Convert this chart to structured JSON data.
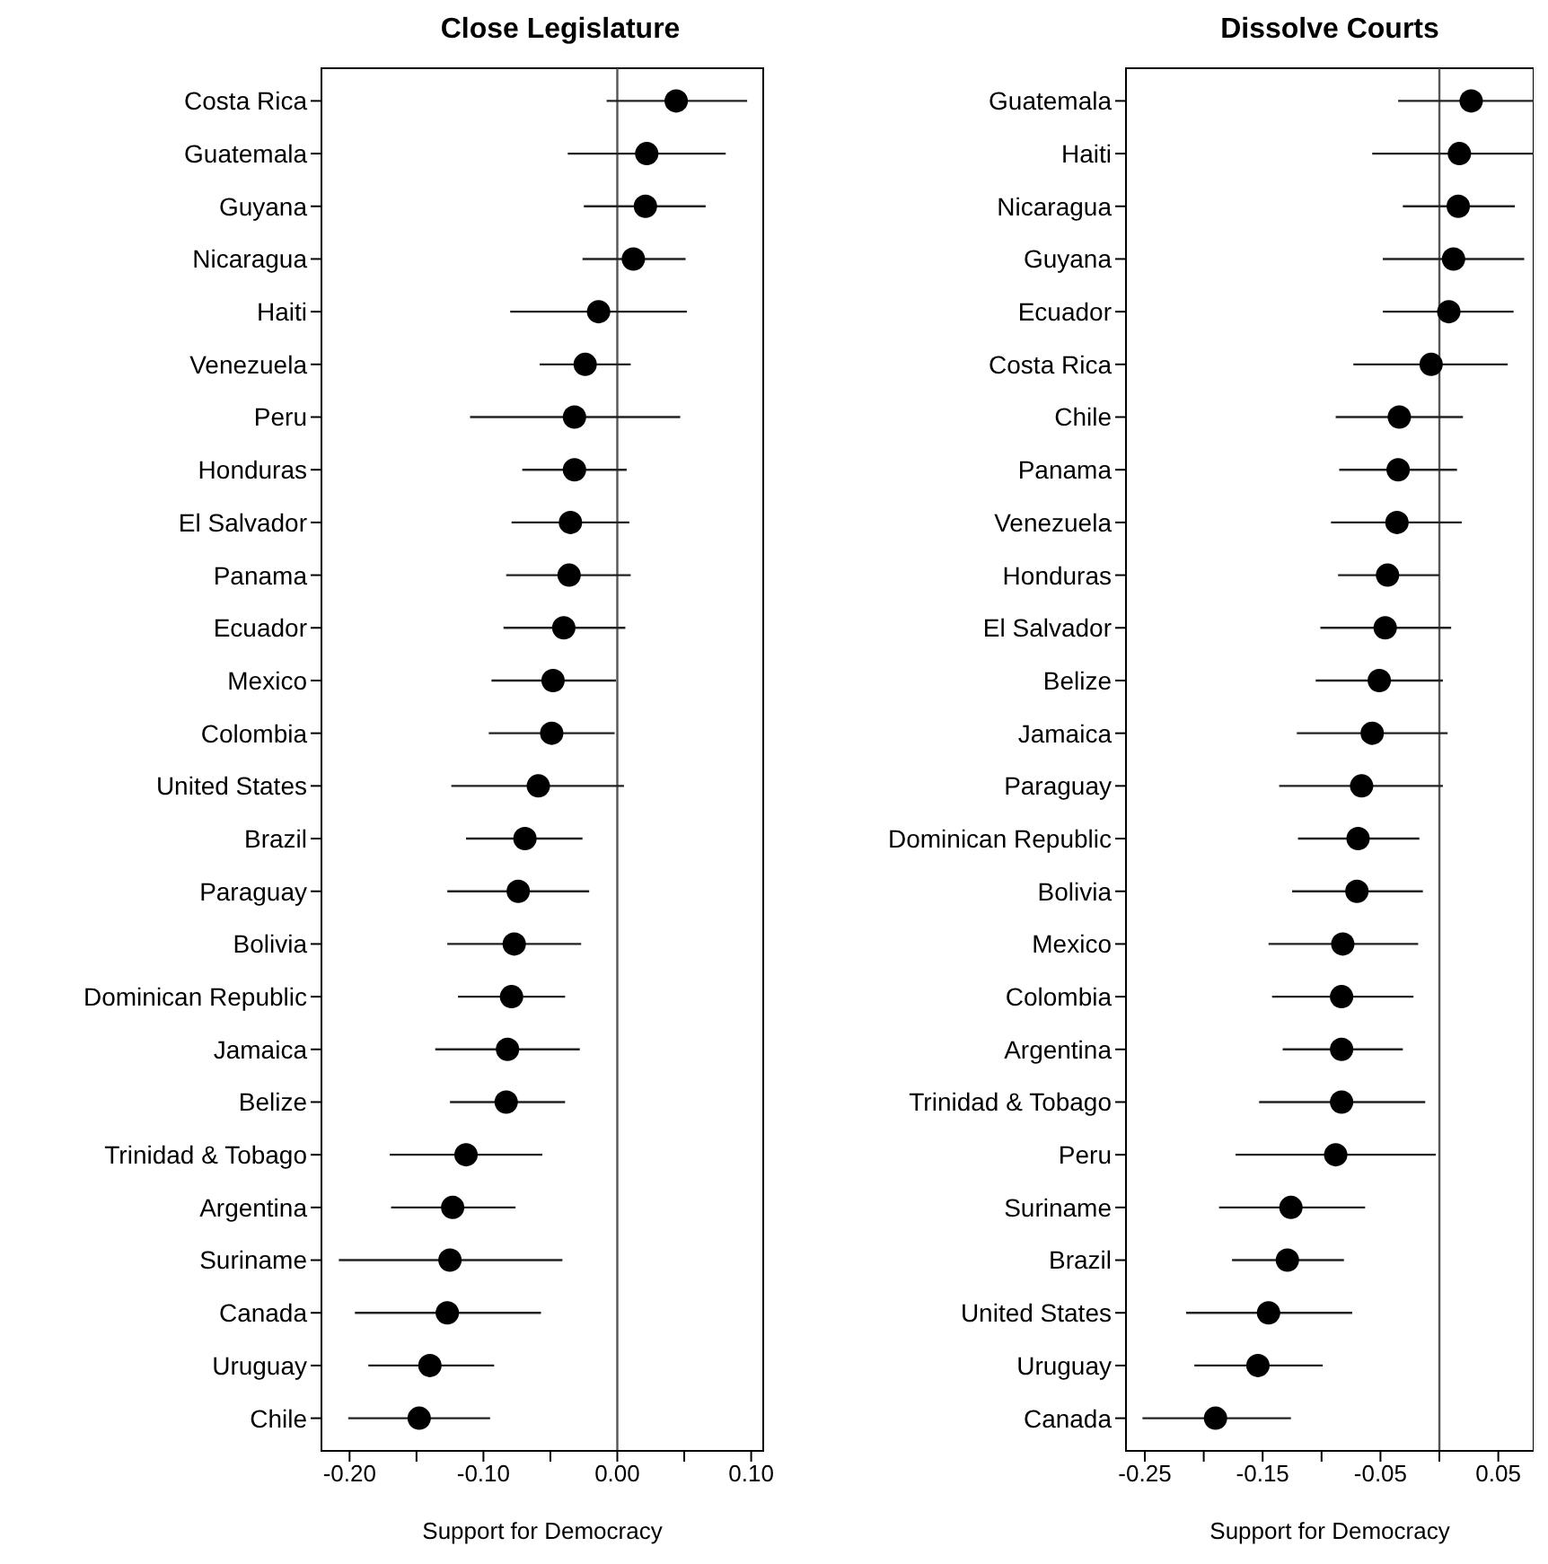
{
  "chart_data": [
    {
      "type": "scatter",
      "orientation": "horizontal",
      "title": "Close Legislature",
      "xlabel": "Support for Democracy",
      "marker": "circle",
      "grid": false,
      "legend": false,
      "categories": [
        "Costa Rica",
        "Guatemala",
        "Guyana",
        "Nicaragua",
        "Haiti",
        "Venezuela",
        "Peru",
        "Honduras",
        "El Salvador",
        "Panama",
        "Ecuador",
        "Mexico",
        "Colombia",
        "United States",
        "Brazil",
        "Paraguay",
        "Bolivia",
        "Dominican Republic",
        "Jamaica",
        "Belize",
        "Trinidad & Tobago",
        "Argentina",
        "Suriname",
        "Canada",
        "Uruguay",
        "Chile"
      ],
      "series": [
        {
          "color": "#000000",
          "values": [
            0.044,
            0.022,
            0.021,
            0.012,
            -0.014,
            -0.024,
            -0.032,
            -0.032,
            -0.035,
            -0.036,
            -0.04,
            -0.048,
            -0.049,
            -0.059,
            -0.069,
            -0.074,
            -0.077,
            -0.079,
            -0.082,
            -0.083,
            -0.113,
            -0.123,
            -0.125,
            -0.127,
            -0.14,
            -0.148
          ],
          "errors": [
            [
              -0.008,
              0.097
            ],
            [
              -0.037,
              0.081
            ],
            [
              -0.025,
              0.066
            ],
            [
              -0.026,
              0.051
            ],
            [
              -0.08,
              0.052
            ],
            [
              -0.058,
              0.01
            ],
            [
              -0.11,
              0.047
            ],
            [
              -0.071,
              0.007
            ],
            [
              -0.079,
              0.009
            ],
            [
              -0.083,
              0.01
            ],
            [
              -0.085,
              0.006
            ],
            [
              -0.094,
              -0.001
            ],
            [
              -0.096,
              -0.002
            ],
            [
              -0.124,
              0.005
            ],
            [
              -0.113,
              -0.026
            ],
            [
              -0.127,
              -0.021
            ],
            [
              -0.127,
              -0.027
            ],
            [
              -0.119,
              -0.039
            ],
            [
              -0.136,
              -0.028
            ],
            [
              -0.125,
              -0.039
            ],
            [
              -0.17,
              -0.056
            ],
            [
              -0.169,
              -0.076
            ],
            [
              -0.208,
              -0.041
            ],
            [
              -0.196,
              -0.057
            ],
            [
              -0.186,
              -0.092
            ],
            [
              -0.201,
              -0.095
            ]
          ]
        }
      ],
      "xlim": [
        -0.221,
        0.109
      ],
      "xticks": [
        {
          "value": -0.2,
          "label": "-0.20"
        },
        {
          "value": -0.15,
          "label": null
        },
        {
          "value": -0.1,
          "label": "-0.10"
        },
        {
          "value": -0.05,
          "label": null
        },
        {
          "value": 0,
          "label": "0.00"
        },
        {
          "value": 0.05,
          "label": null
        },
        {
          "value": 0.1,
          "label": "0.10"
        }
      ],
      "ref_lines": [
        {
          "axis": "x",
          "value": 0,
          "color": "#555555"
        }
      ]
    },
    {
      "type": "scatter",
      "orientation": "horizontal",
      "title": "Dissolve Courts",
      "xlabel": "Support for Democracy",
      "marker": "circle",
      "grid": false,
      "legend": false,
      "categories": [
        "Guatemala",
        "Haiti",
        "Nicaragua",
        "Guyana",
        "Ecuador",
        "Costa Rica",
        "Chile",
        "Panama",
        "Venezuela",
        "Honduras",
        "El Salvador",
        "Belize",
        "Jamaica",
        "Paraguay",
        "Dominican Republic",
        "Bolivia",
        "Mexico",
        "Colombia",
        "Argentina",
        "Trinidad & Tobago",
        "Peru",
        "Suriname",
        "Brazil",
        "United States",
        "Uruguay",
        "Canada"
      ],
      "series": [
        {
          "color": "#000000",
          "values": [
            0.027,
            0.017,
            0.016,
            0.012,
            0.008,
            -0.007,
            -0.034,
            -0.035,
            -0.036,
            -0.044,
            -0.046,
            -0.051,
            -0.057,
            -0.066,
            -0.069,
            -0.07,
            -0.082,
            -0.083,
            -0.083,
            -0.083,
            -0.088,
            -0.126,
            -0.129,
            -0.145,
            -0.154,
            -0.19
          ],
          "errors": [
            [
              -0.035,
              0.08
            ],
            [
              -0.057,
              0.08
            ],
            [
              -0.031,
              0.064
            ],
            [
              -0.048,
              0.072
            ],
            [
              -0.048,
              0.063
            ],
            [
              -0.073,
              0.058
            ],
            [
              -0.088,
              0.02
            ],
            [
              -0.085,
              0.015
            ],
            [
              -0.092,
              0.019
            ],
            [
              -0.086,
              0.0
            ],
            [
              -0.101,
              0.01
            ],
            [
              -0.105,
              0.003
            ],
            [
              -0.121,
              0.007
            ],
            [
              -0.136,
              0.003
            ],
            [
              -0.12,
              -0.017
            ],
            [
              -0.125,
              -0.014
            ],
            [
              -0.145,
              -0.018
            ],
            [
              -0.142,
              -0.022
            ],
            [
              -0.133,
              -0.031
            ],
            [
              -0.153,
              -0.012
            ],
            [
              -0.173,
              -0.003
            ],
            [
              -0.187,
              -0.063
            ],
            [
              -0.176,
              -0.081
            ],
            [
              -0.215,
              -0.074
            ],
            [
              -0.208,
              -0.099
            ],
            [
              -0.252,
              -0.126
            ]
          ]
        }
      ],
      "xlim": [
        -0.266,
        0.08
      ],
      "xticks": [
        -0.25,
        {
          "value": -0.2,
          "label": null
        },
        -0.15,
        {
          "value": -0.1,
          "label": null
        },
        -0.05,
        {
          "value": 0,
          "label": null
        },
        0.05
      ],
      "ref_lines": [
        {
          "axis": "x",
          "value": 0,
          "color": "#555555"
        }
      ]
    }
  ]
}
